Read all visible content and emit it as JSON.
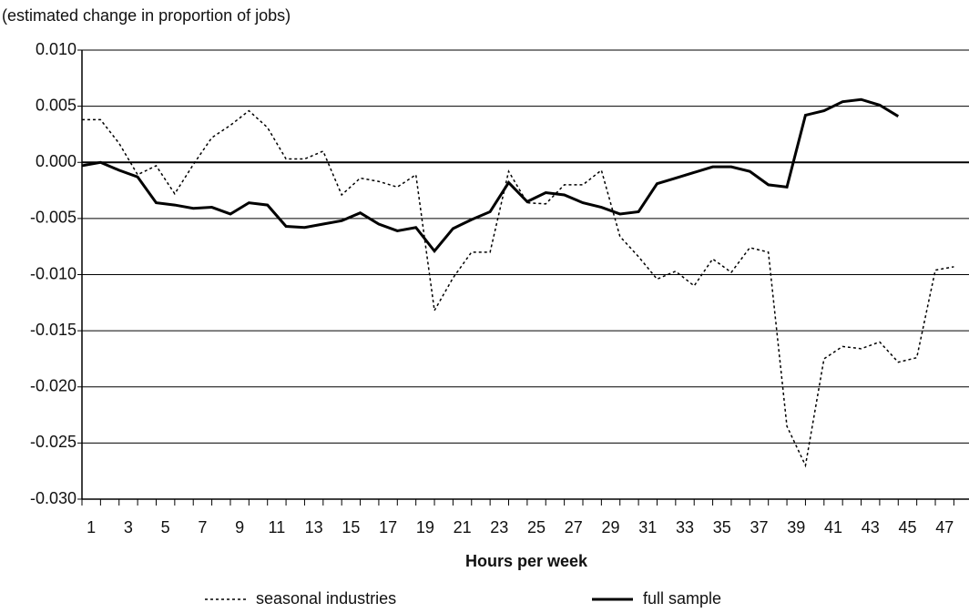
{
  "chart_data": {
    "type": "line",
    "y_label": "(estimated change in proportion of jobs)",
    "x_label": "Hours per week",
    "categories": [
      "1",
      null,
      "3",
      null,
      "5",
      null,
      "7",
      null,
      "9",
      null,
      "11",
      null,
      "13",
      null,
      "15",
      null,
      "17",
      null,
      "19",
      null,
      "21",
      null,
      "23",
      null,
      "25",
      null,
      "27",
      null,
      "29",
      null,
      "31",
      null,
      "33",
      null,
      "35",
      null,
      "37",
      null,
      "39",
      null,
      "41",
      null,
      "43",
      null,
      "45",
      null,
      "47",
      null
    ],
    "ylim": [
      -0.03,
      0.01
    ],
    "yticks": [
      {
        "value": 0.01,
        "label": "0.010"
      },
      {
        "value": 0.005,
        "label": "0.005"
      },
      {
        "value": 0,
        "label": "0.000"
      },
      {
        "value": -0.005,
        "label": "-0.005"
      },
      {
        "value": -0.01,
        "label": "-0.010"
      },
      {
        "value": -0.015,
        "label": "-0.015"
      },
      {
        "value": -0.02,
        "label": "-0.020"
      },
      {
        "value": -0.025,
        "label": "-0.025"
      },
      {
        "value": -0.03,
        "label": "-0.030"
      }
    ],
    "grid": true,
    "series": [
      {
        "name": "seasonal industries",
        "color": "#000000",
        "style": "dotted",
        "values": [
          0.0038,
          0.0038,
          0.0017,
          -0.0011,
          -0.0003,
          -0.0028,
          -0.0002,
          0.0022,
          0.0033,
          0.0046,
          0.0031,
          0.0003,
          0.0003,
          0.001,
          -0.0029,
          -0.0014,
          -0.0017,
          -0.0022,
          -0.0011,
          -0.0132,
          -0.0103,
          -0.008,
          -0.008,
          -0.0008,
          -0.0036,
          -0.0037,
          -0.002,
          -0.002,
          -0.0007,
          -0.0066,
          -0.0084,
          -0.0104,
          -0.0097,
          -0.011,
          -0.0086,
          -0.0098,
          -0.0076,
          -0.008,
          -0.0235,
          -0.027,
          -0.0175,
          -0.0164,
          -0.0166,
          -0.016,
          -0.0178,
          -0.0174,
          -0.0096,
          -0.0093
        ]
      },
      {
        "name": "full sample",
        "color": "#000000",
        "style": "solid",
        "values": [
          -0.0003,
          0.0,
          -0.0007,
          -0.0013,
          -0.0036,
          -0.0038,
          -0.0041,
          -0.004,
          -0.0046,
          -0.0036,
          -0.0038,
          -0.0057,
          -0.0058,
          -0.0055,
          -0.0052,
          -0.0045,
          -0.0055,
          -0.0061,
          -0.0058,
          -0.0079,
          -0.0059,
          -0.0051,
          -0.0044,
          -0.0018,
          -0.0035,
          -0.0027,
          -0.0029,
          -0.0036,
          -0.004,
          -0.0046,
          -0.0044,
          -0.0019,
          -0.0014,
          -0.0009,
          -0.0004,
          -0.0004,
          -0.0008,
          -0.002,
          -0.0022,
          0.0042,
          0.0046,
          0.0054,
          0.0056,
          0.0051,
          0.0041,
          null,
          null,
          null
        ]
      }
    ]
  }
}
